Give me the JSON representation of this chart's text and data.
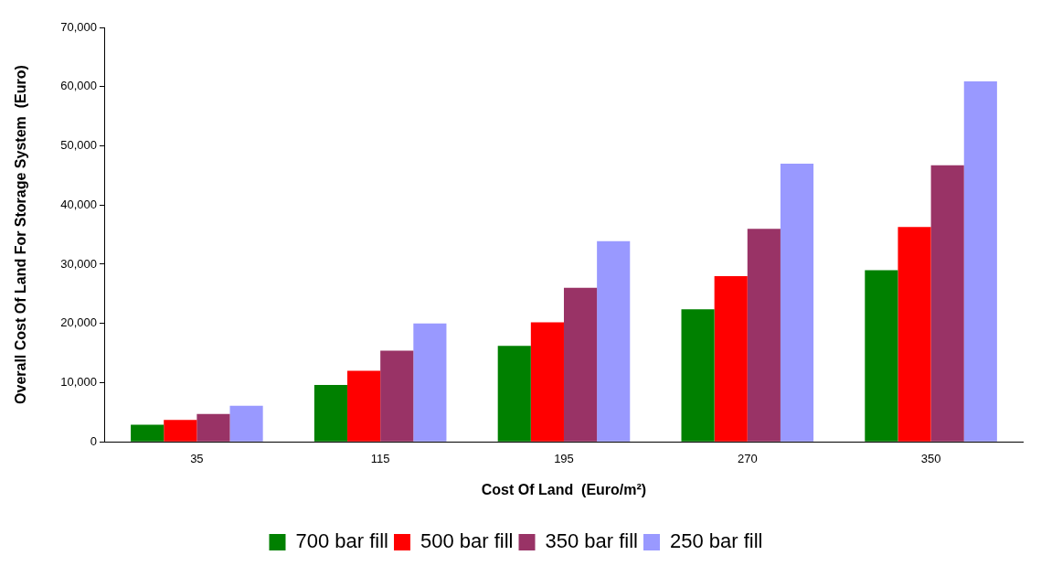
{
  "chart_data": {
    "type": "bar",
    "xlabel": "Cost Of Land  (Euro/m²)",
    "ylabel": "Overall Cost Of Land For Storage System  (Euro)",
    "categories": [
      "35",
      "115",
      "195",
      "270",
      "350"
    ],
    "series": [
      {
        "name": "700 bar fill",
        "color": "#008000",
        "values": [
          2900,
          9600,
          16200,
          22400,
          29000
        ]
      },
      {
        "name": "500 bar fill",
        "color": "#ff0000",
        "values": [
          3700,
          12000,
          20200,
          28000,
          36300
        ]
      },
      {
        "name": "350 bar fill",
        "color": "#993366",
        "values": [
          4700,
          15400,
          26000,
          36000,
          46700
        ]
      },
      {
        "name": "250 bar fill",
        "color": "#9999ff",
        "values": [
          6100,
          20000,
          33900,
          47000,
          60900
        ]
      }
    ],
    "ylim": [
      0,
      70000
    ],
    "yticks": [
      0,
      {
        "value": 10000,
        "label": "10,000"
      },
      {
        "value": 20000,
        "label": "20,000"
      },
      {
        "value": 30000,
        "label": "30,000"
      },
      {
        "value": 40000,
        "label": "40,000"
      },
      {
        "value": 50000,
        "label": "50,000"
      },
      {
        "value": 60000,
        "label": "60,000"
      },
      {
        "value": 70000,
        "label": "70,000"
      }
    ],
    "grid": false,
    "legend": "bottom"
  }
}
